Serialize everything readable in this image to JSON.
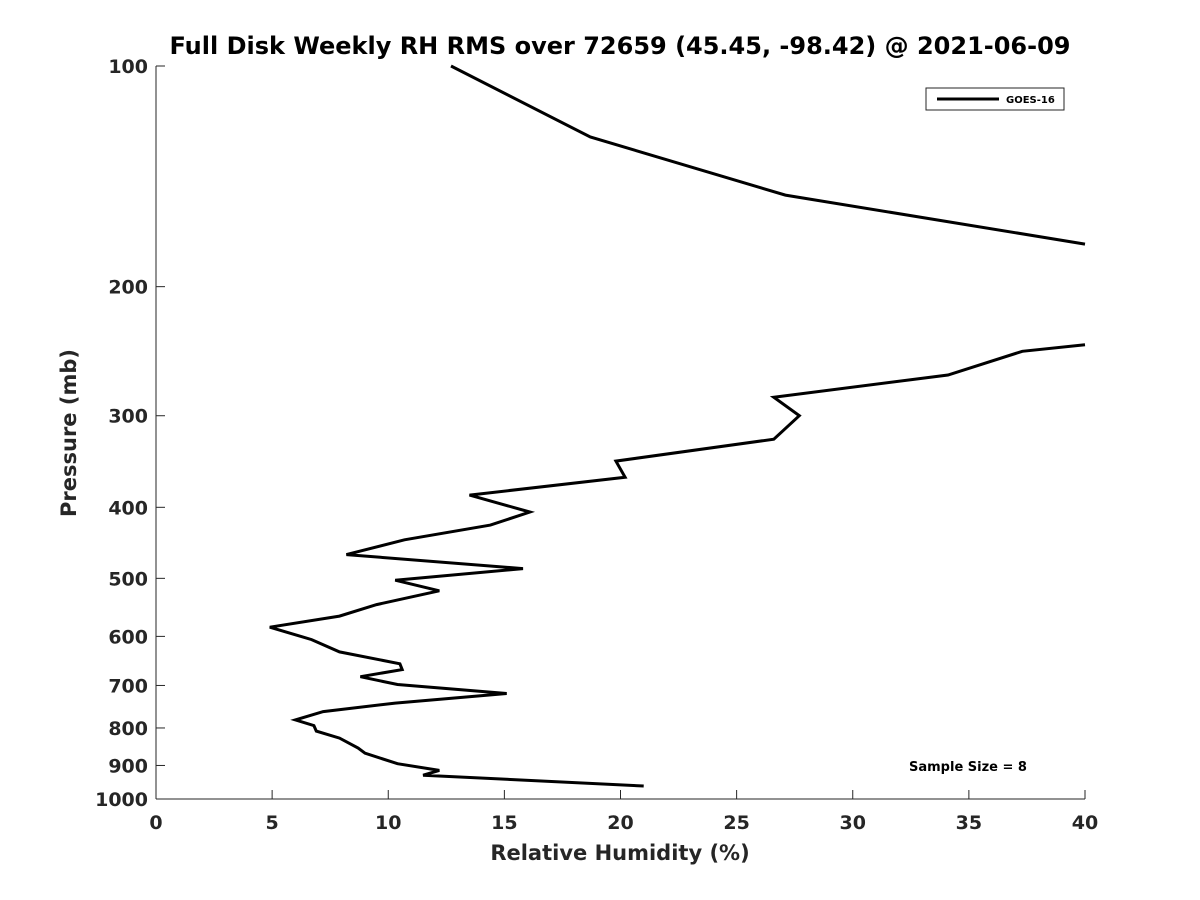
{
  "chart_data": {
    "type": "line",
    "title": "Full Disk Weekly RH RMS over 72659 (45.45, -98.42) @ 2021-06-09",
    "xlabel": "Relative Humidity (%)",
    "ylabel": "Pressure (mb)",
    "xlim": [
      0,
      40
    ],
    "ylim": [
      100,
      1000
    ],
    "y_scale": "log",
    "y_reversed": true,
    "grid": false,
    "x_ticks": [
      0,
      5,
      10,
      15,
      20,
      25,
      30,
      35,
      40
    ],
    "y_ticks": [
      100,
      200,
      300,
      400,
      500,
      600,
      700,
      800,
      900,
      1000
    ],
    "legend_position": "top-right",
    "annotation": "Sample Size = 8",
    "series": [
      {
        "name": "GOES-16",
        "color": "#000000",
        "segments": [
          [
            [
              12.7,
              100
            ],
            [
              18.7,
              125
            ],
            [
              27.1,
              150
            ],
            [
              40.0,
              175
            ]
          ],
          [
            [
              40.0,
              240
            ],
            [
              37.3,
              245
            ],
            [
              34.1,
              264
            ],
            [
              26.6,
              283
            ],
            [
              27.7,
              300
            ],
            [
              26.6,
              323
            ],
            [
              19.8,
              346
            ],
            [
              20.2,
              364
            ],
            [
              13.5,
              385
            ],
            [
              16.1,
              406
            ],
            [
              14.4,
              423
            ],
            [
              10.7,
              443
            ],
            [
              8.2,
              464
            ],
            [
              15.8,
              485
            ],
            [
              10.3,
              503
            ],
            [
              12.2,
              520
            ],
            [
              9.5,
              543
            ],
            [
              7.9,
              563
            ],
            [
              4.9,
              583
            ],
            [
              6.7,
              606
            ],
            [
              7.9,
              630
            ],
            [
              10.5,
              654
            ],
            [
              10.6,
              666
            ],
            [
              8.8,
              681
            ],
            [
              10.4,
              698
            ],
            [
              15.1,
              718
            ],
            [
              10.3,
              740
            ],
            [
              7.2,
              760
            ],
            [
              6.0,
              780
            ],
            [
              6.8,
              794
            ],
            [
              6.9,
              808
            ],
            [
              7.9,
              826
            ],
            [
              8.7,
              852
            ],
            [
              9.0,
              866
            ],
            [
              10.4,
              895
            ],
            [
              12.2,
              914
            ],
            [
              11.5,
              928
            ],
            [
              21.0,
              960
            ]
          ]
        ]
      }
    ]
  }
}
